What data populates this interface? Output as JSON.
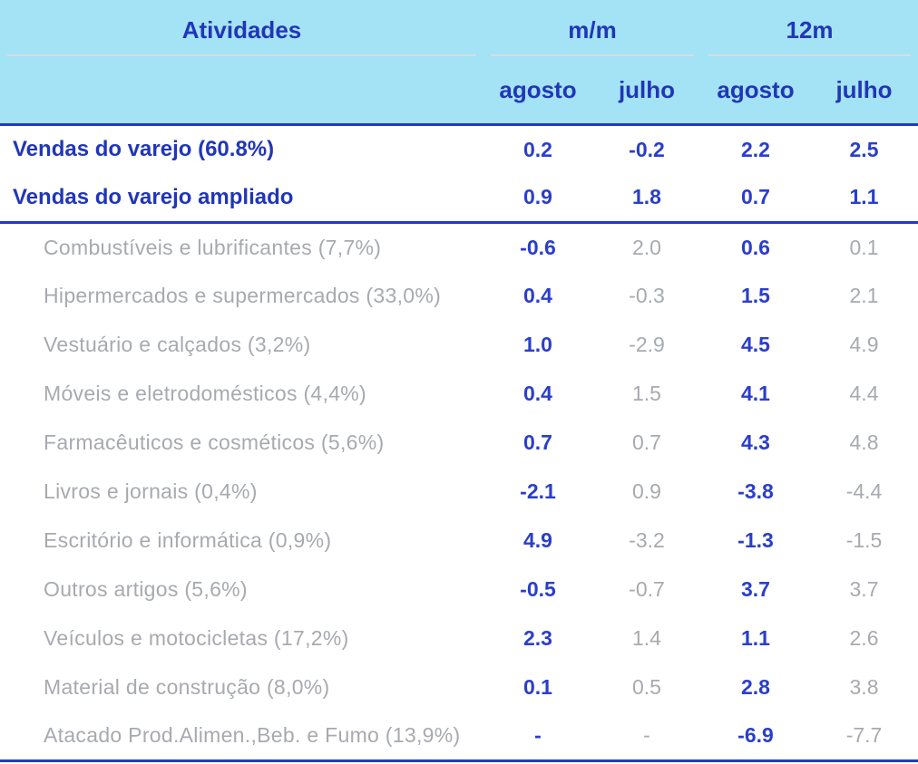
{
  "colors": {
    "header_background": "#a4e3f6",
    "header_text_blue": "#2136b8",
    "value_blue": "#2a3eca",
    "muted_gray_text": "#a7aaae",
    "header_divider_gray": "#d7dde0",
    "border_blue": "#2339c4",
    "body_background": "#ffffff"
  },
  "chart_data": {
    "type": "table",
    "title": "Atividades",
    "header": {
      "activities": "Atividades",
      "groups": [
        {
          "label": "m/m",
          "sub": [
            "agosto",
            "julho"
          ]
        },
        {
          "label": "12m",
          "sub": [
            "agosto",
            "julho"
          ]
        }
      ],
      "columns_flat": [
        "m/m agosto",
        "m/m julho",
        "12m agosto",
        "12m julho"
      ]
    },
    "summary_rows": [
      {
        "label": "Vendas do varejo (60.8%)",
        "values": [
          "0.2",
          "-0.2",
          "2.2",
          "2.5"
        ]
      },
      {
        "label": "Vendas do varejo ampliado",
        "values": [
          "0.9",
          "1.8",
          "0.7",
          "1.1"
        ]
      }
    ],
    "detail_rows": [
      {
        "label": "Combustíveis e lubrificantes (7,7%)",
        "values": [
          "-0.6",
          "2.0",
          "0.6",
          "0.1"
        ]
      },
      {
        "label": "Hipermercados e supermercados (33,0%)",
        "values": [
          "0.4",
          "-0.3",
          "1.5",
          "2.1"
        ]
      },
      {
        "label": "Vestuário e calçados (3,2%)",
        "values": [
          "1.0",
          "-2.9",
          "4.5",
          "4.9"
        ]
      },
      {
        "label": "Móveis e eletrodomésticos (4,4%)",
        "values": [
          "0.4",
          "1.5",
          "4.1",
          "4.4"
        ]
      },
      {
        "label": "Farmacêuticos e cosméticos (5,6%)",
        "values": [
          "0.7",
          "0.7",
          "4.3",
          "4.8"
        ]
      },
      {
        "label": "Livros e jornais (0,4%)",
        "values": [
          "-2.1",
          "0.9",
          "-3.8",
          "-4.4"
        ]
      },
      {
        "label": "Escritório e informática (0,9%)",
        "values": [
          "4.9",
          "-3.2",
          "-1.3",
          "-1.5"
        ]
      },
      {
        "label": "Outros artigos (5,6%)",
        "values": [
          "-0.5",
          "-0.7",
          "3.7",
          "3.7"
        ]
      },
      {
        "label": "Veículos e motocicletas (17,2%)",
        "values": [
          "2.3",
          "1.4",
          "1.1",
          "2.6"
        ]
      },
      {
        "label": "Material de construção (8,0%)",
        "values": [
          "0.1",
          "0.5",
          "2.8",
          "3.8"
        ]
      },
      {
        "label": "Atacado Prod.Alimen.,Beb. e Fumo (13,9%)",
        "values": [
          "-",
          "-",
          "-6.9",
          "-7.7"
        ]
      }
    ]
  }
}
